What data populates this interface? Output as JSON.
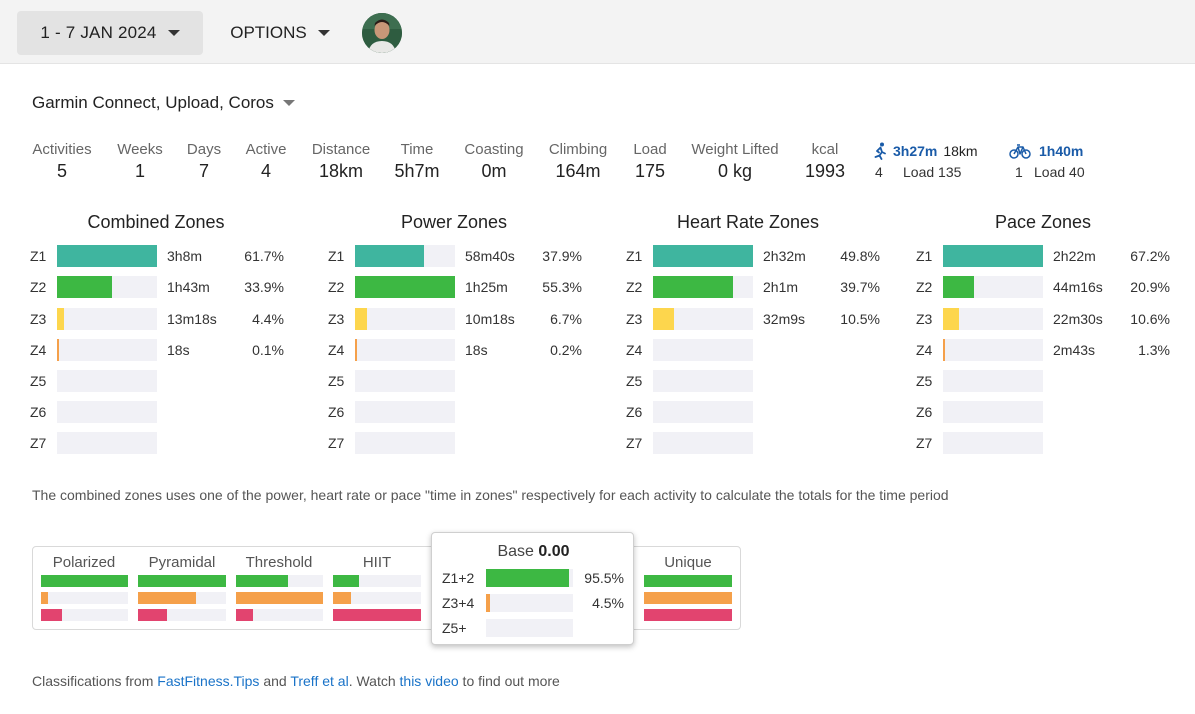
{
  "colors": {
    "teal": "#3fb59f",
    "green": "#3db843",
    "yellow": "#fdd64d",
    "orange": "#f5a04a",
    "pink": "#e2446f",
    "link": "#1a73c8",
    "track": "#f1f1f6"
  },
  "toolbar": {
    "date_range": "1 - 7 JAN 2024",
    "options_label": "OPTIONS",
    "avatar_icon": "user-avatar"
  },
  "source_label": "Garmin Connect, Upload, Coros",
  "stats": [
    {
      "label": "Activities",
      "value": "5"
    },
    {
      "label": "Weeks",
      "value": "1"
    },
    {
      "label": "Days",
      "value": "7"
    },
    {
      "label": "Active",
      "value": "4"
    },
    {
      "label": "Distance",
      "value": "18km"
    },
    {
      "label": "Time",
      "value": "5h7m"
    },
    {
      "label": "Coasting",
      "value": "0m"
    },
    {
      "label": "Climbing",
      "value": "164m"
    },
    {
      "label": "Load",
      "value": "175"
    },
    {
      "label": "Weight Lifted",
      "value": "0 kg"
    },
    {
      "label": "kcal",
      "value": "1993"
    }
  ],
  "sports": {
    "run": {
      "icon": "running-icon",
      "duration": "3h27m",
      "distance": "18km",
      "count": "4",
      "load": "Load 135"
    },
    "ride": {
      "icon": "bike-icon",
      "duration": "1h40m",
      "count": "1",
      "load": "Load 40"
    }
  },
  "zone_panels": [
    {
      "title": "Combined Zones",
      "zones": [
        {
          "label": "Z1",
          "fraction": 1.0,
          "time": "3h8m",
          "pct": "61.7%"
        },
        {
          "label": "Z2",
          "fraction": 0.549,
          "time": "1h43m",
          "pct": "33.9%"
        },
        {
          "label": "Z3",
          "fraction": 0.071,
          "time": "13m18s",
          "pct": "4.4%"
        },
        {
          "label": "Z4",
          "fraction": 0.016,
          "time": "18s",
          "pct": "0.1%"
        },
        {
          "label": "Z5",
          "fraction": 0,
          "time": "",
          "pct": ""
        },
        {
          "label": "Z6",
          "fraction": 0,
          "time": "",
          "pct": ""
        },
        {
          "label": "Z7",
          "fraction": 0,
          "time": "",
          "pct": ""
        }
      ]
    },
    {
      "title": "Power Zones",
      "zones": [
        {
          "label": "Z1",
          "fraction": 0.685,
          "time": "58m40s",
          "pct": "37.9%"
        },
        {
          "label": "Z2",
          "fraction": 1.0,
          "time": "1h25m",
          "pct": "55.3%"
        },
        {
          "label": "Z3",
          "fraction": 0.121,
          "time": "10m18s",
          "pct": "6.7%"
        },
        {
          "label": "Z4",
          "fraction": 0.016,
          "time": "18s",
          "pct": "0.2%"
        },
        {
          "label": "Z5",
          "fraction": 0,
          "time": "",
          "pct": ""
        },
        {
          "label": "Z6",
          "fraction": 0,
          "time": "",
          "pct": ""
        },
        {
          "label": "Z7",
          "fraction": 0,
          "time": "",
          "pct": ""
        }
      ]
    },
    {
      "title": "Heart Rate Zones",
      "zones": [
        {
          "label": "Z1",
          "fraction": 1.0,
          "time": "2h32m",
          "pct": "49.8%"
        },
        {
          "label": "Z2",
          "fraction": 0.797,
          "time": "2h1m",
          "pct": "39.7%"
        },
        {
          "label": "Z3",
          "fraction": 0.211,
          "time": "32m9s",
          "pct": "10.5%"
        },
        {
          "label": "Z4",
          "fraction": 0,
          "time": "",
          "pct": ""
        },
        {
          "label": "Z5",
          "fraction": 0,
          "time": "",
          "pct": ""
        },
        {
          "label": "Z6",
          "fraction": 0,
          "time": "",
          "pct": ""
        },
        {
          "label": "Z7",
          "fraction": 0,
          "time": "",
          "pct": ""
        }
      ]
    },
    {
      "title": "Pace Zones",
      "zones": [
        {
          "label": "Z1",
          "fraction": 1.0,
          "time": "2h22m",
          "pct": "67.2%"
        },
        {
          "label": "Z2",
          "fraction": 0.311,
          "time": "44m16s",
          "pct": "20.9%"
        },
        {
          "label": "Z3",
          "fraction": 0.158,
          "time": "22m30s",
          "pct": "10.6%"
        },
        {
          "label": "Z4",
          "fraction": 0.019,
          "time": "2m43s",
          "pct": "1.3%"
        },
        {
          "label": "Z5",
          "fraction": 0,
          "time": "",
          "pct": ""
        },
        {
          "label": "Z6",
          "fraction": 0,
          "time": "",
          "pct": ""
        },
        {
          "label": "Z7",
          "fraction": 0,
          "time": "",
          "pct": ""
        }
      ]
    }
  ],
  "note": "The combined zones uses one of the power, heart rate or pace \"time in zones\" respectively for each activity to calculate the totals for the time period",
  "classifications": [
    {
      "label": "Polarized",
      "bars": [
        1.0,
        0.08,
        0.24
      ]
    },
    {
      "label": "Pyramidal",
      "bars": [
        1.0,
        0.66,
        0.33
      ]
    },
    {
      "label": "Threshold",
      "bars": [
        0.6,
        1.0,
        0.19
      ]
    },
    {
      "label": "HIIT",
      "bars": [
        0.3,
        0.21,
        1.0
      ]
    },
    {
      "label": "Unique",
      "bars": [
        1.0,
        1.0,
        1.0
      ]
    }
  ],
  "popup": {
    "title": "Base",
    "score": "0.00",
    "rows": [
      {
        "label": "Z1+2",
        "fraction": 0.955,
        "pct": "95.5%"
      },
      {
        "label": "Z3+4",
        "fraction": 0.045,
        "pct": "4.5%"
      },
      {
        "label": "Z5+",
        "fraction": 0,
        "pct": ""
      }
    ]
  },
  "footer": {
    "prefix": "Classifications from ",
    "link1": "FastFitness.Tips",
    "and": " and ",
    "link2": "Treff et al",
    "mid": ". Watch ",
    "link3": "this video",
    "suffix": " to find out more"
  }
}
